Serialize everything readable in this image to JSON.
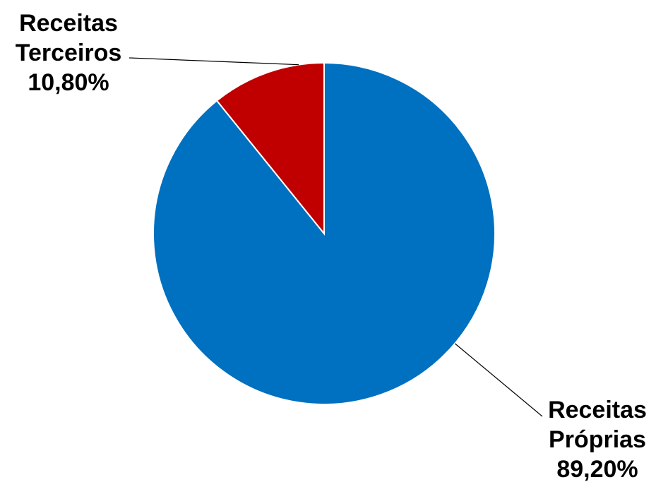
{
  "chart_data": {
    "type": "pie",
    "start_angle_deg": 0,
    "direction": "clockwise",
    "slices": [
      {
        "label_lines": [
          "Receitas",
          "Próprias"
        ],
        "value": 89.2,
        "value_label": "89,20%",
        "color": "#0070C0"
      },
      {
        "label_lines": [
          "Receitas",
          "Terceiros"
        ],
        "value": 10.8,
        "value_label": "10,80%",
        "color": "#C00000"
      }
    ],
    "slice_border_color": "#ffffff",
    "leader_line_color": "#000000",
    "legend": "none"
  }
}
